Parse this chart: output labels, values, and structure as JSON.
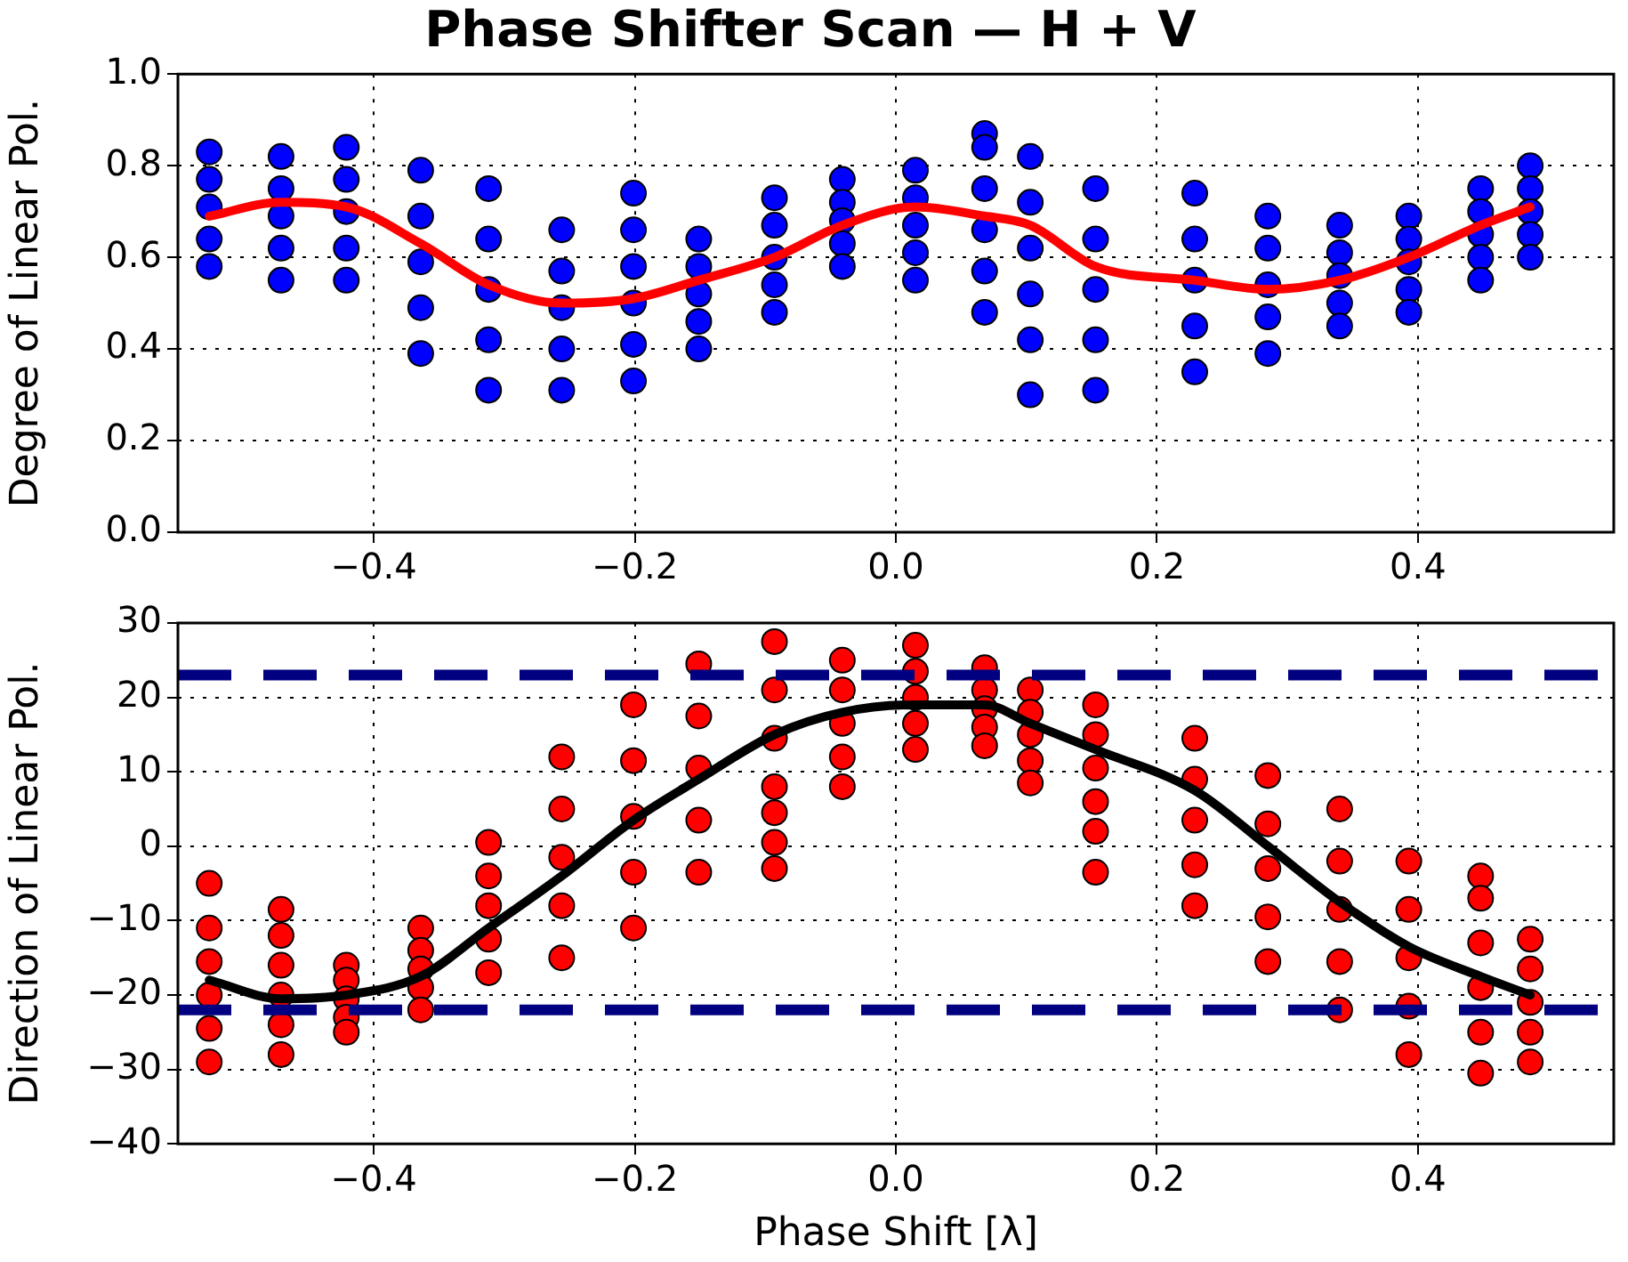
{
  "chart_data": [
    {
      "type": "scatter",
      "title": "Phase Shifter Scan — H + V",
      "ylabel": "Degree of Linear Pol.",
      "xlim": [
        -0.55,
        0.55
      ],
      "xticks": [
        {
          "value": -0.4,
          "label": "−0.4"
        },
        {
          "value": -0.2,
          "label": "−0.2"
        },
        {
          "value": 0,
          "label": "0.0"
        },
        {
          "value": 0.2,
          "label": "0.2"
        },
        {
          "value": 0.4,
          "label": "0.4"
        }
      ],
      "ylim": [
        0,
        1
      ],
      "yticks": [
        {
          "value": 0,
          "label": "0.0"
        },
        {
          "value": 0.2,
          "label": "0.2"
        },
        {
          "value": 0.4,
          "label": "0.4"
        },
        {
          "value": 0.6,
          "label": "0.6"
        },
        {
          "value": 0.8,
          "label": "0.8"
        },
        {
          "value": 1,
          "label": "1.0"
        }
      ],
      "grid": true,
      "legend": false,
      "series": [
        {
          "color": "#0000ff",
          "marker": "circle",
          "x": [
            -0.526,
            -0.526,
            -0.526,
            -0.526,
            -0.526,
            -0.471,
            -0.471,
            -0.471,
            -0.471,
            -0.471,
            -0.421,
            -0.421,
            -0.421,
            -0.421,
            -0.421,
            -0.364,
            -0.364,
            -0.364,
            -0.364,
            -0.364,
            -0.312,
            -0.312,
            -0.312,
            -0.312,
            -0.312,
            -0.256,
            -0.256,
            -0.256,
            -0.256,
            -0.256,
            -0.201,
            -0.201,
            -0.201,
            -0.201,
            -0.201,
            -0.201,
            -0.151,
            -0.151,
            -0.151,
            -0.151,
            -0.151,
            -0.093,
            -0.093,
            -0.093,
            -0.093,
            -0.093,
            -0.041,
            -0.041,
            -0.041,
            -0.041,
            -0.041,
            0.015,
            0.015,
            0.015,
            0.015,
            0.015,
            0.068,
            0.068,
            0.068,
            0.068,
            0.068,
            0.068,
            0.103,
            0.103,
            0.103,
            0.103,
            0.103,
            0.103,
            0.153,
            0.153,
            0.153,
            0.153,
            0.153,
            0.229,
            0.229,
            0.229,
            0.229,
            0.229,
            0.285,
            0.285,
            0.285,
            0.285,
            0.285,
            0.34,
            0.34,
            0.34,
            0.34,
            0.34,
            0.393,
            0.393,
            0.393,
            0.393,
            0.393,
            0.448,
            0.448,
            0.448,
            0.448,
            0.448,
            0.486,
            0.486,
            0.486,
            0.486,
            0.486
          ],
          "values": [
            0.83,
            0.77,
            0.71,
            0.64,
            0.58,
            0.82,
            0.75,
            0.69,
            0.62,
            0.55,
            0.84,
            0.77,
            0.7,
            0.62,
            0.55,
            0.79,
            0.69,
            0.59,
            0.49,
            0.39,
            0.75,
            0.64,
            0.53,
            0.42,
            0.31,
            0.66,
            0.57,
            0.49,
            0.4,
            0.31,
            0.74,
            0.66,
            0.58,
            0.5,
            0.41,
            0.33,
            0.64,
            0.58,
            0.52,
            0.46,
            0.4,
            0.73,
            0.67,
            0.6,
            0.54,
            0.48,
            0.77,
            0.72,
            0.68,
            0.63,
            0.58,
            0.79,
            0.73,
            0.67,
            0.61,
            0.55,
            0.87,
            0.84,
            0.75,
            0.66,
            0.57,
            0.48,
            0.82,
            0.72,
            0.62,
            0.52,
            0.42,
            0.3,
            0.75,
            0.64,
            0.53,
            0.42,
            0.31,
            0.74,
            0.64,
            0.55,
            0.45,
            0.35,
            0.69,
            0.62,
            0.54,
            0.47,
            0.39,
            0.67,
            0.61,
            0.56,
            0.5,
            0.45,
            0.69,
            0.64,
            0.59,
            0.53,
            0.48,
            0.75,
            0.7,
            0.65,
            0.6,
            0.55,
            0.8,
            0.75,
            0.7,
            0.65,
            0.6
          ]
        },
        {
          "type": "line",
          "color": "#ff0000",
          "marker": "none",
          "line_style": "solid",
          "x": [
            -0.526,
            -0.471,
            -0.421,
            -0.364,
            -0.312,
            -0.256,
            -0.201,
            -0.151,
            -0.093,
            -0.041,
            0.015,
            0.068,
            0.103,
            0.153,
            0.229,
            0.285,
            0.34,
            0.393,
            0.448,
            0.486
          ],
          "values": [
            0.69,
            0.72,
            0.71,
            0.63,
            0.54,
            0.5,
            0.51,
            0.55,
            0.6,
            0.67,
            0.71,
            0.69,
            0.67,
            0.58,
            0.55,
            0.53,
            0.55,
            0.6,
            0.67,
            0.71
          ]
        }
      ]
    },
    {
      "type": "scatter",
      "xlabel": "Phase Shift [λ]",
      "ylabel": "Direction of Linear Pol.",
      "xlim": [
        -0.55,
        0.55
      ],
      "xticks": [
        {
          "value": -0.4,
          "label": "−0.4"
        },
        {
          "value": -0.2,
          "label": "−0.2"
        },
        {
          "value": 0,
          "label": "0.0"
        },
        {
          "value": 0.2,
          "label": "0.2"
        },
        {
          "value": 0.4,
          "label": "0.4"
        }
      ],
      "ylim": [
        -40,
        30
      ],
      "yticks": [
        {
          "value": -40,
          "label": "−40"
        },
        {
          "value": -30,
          "label": "−30"
        },
        {
          "value": -20,
          "label": "−20"
        },
        {
          "value": -10,
          "label": "−10"
        },
        0,
        10,
        20,
        30
      ],
      "grid": true,
      "legend": false,
      "ref_lines": [
        {
          "axis": "y",
          "value": 23,
          "color": "#000080",
          "line_style": "dashed"
        },
        {
          "axis": "y",
          "value": -22,
          "color": "#000080",
          "line_style": "dashed"
        }
      ],
      "series": [
        {
          "color": "#ff0000",
          "marker": "circle",
          "x": [
            -0.526,
            -0.526,
            -0.526,
            -0.526,
            -0.526,
            -0.526,
            -0.471,
            -0.471,
            -0.471,
            -0.471,
            -0.471,
            -0.471,
            -0.421,
            -0.421,
            -0.421,
            -0.421,
            -0.421,
            -0.364,
            -0.364,
            -0.364,
            -0.364,
            -0.364,
            -0.312,
            -0.312,
            -0.312,
            -0.312,
            -0.312,
            -0.256,
            -0.256,
            -0.256,
            -0.256,
            -0.256,
            -0.201,
            -0.201,
            -0.201,
            -0.201,
            -0.201,
            -0.151,
            -0.151,
            -0.151,
            -0.151,
            -0.151,
            -0.093,
            -0.093,
            -0.093,
            -0.093,
            -0.093,
            -0.093,
            -0.093,
            -0.041,
            -0.041,
            -0.041,
            -0.041,
            -0.041,
            0.015,
            0.015,
            0.015,
            0.015,
            0.015,
            0.068,
            0.068,
            0.068,
            0.068,
            0.068,
            0.103,
            0.103,
            0.103,
            0.103,
            0.103,
            0.153,
            0.153,
            0.153,
            0.153,
            0.153,
            0.153,
            0.229,
            0.229,
            0.229,
            0.229,
            0.229,
            0.285,
            0.285,
            0.285,
            0.285,
            0.285,
            0.34,
            0.34,
            0.34,
            0.34,
            0.34,
            0.393,
            0.393,
            0.393,
            0.393,
            0.393,
            0.448,
            0.448,
            0.448,
            0.448,
            0.448,
            0.448,
            0.486,
            0.486,
            0.486,
            0.486,
            0.486
          ],
          "values": [
            -5,
            -11,
            -15.5,
            -20,
            -24.5,
            -29,
            -8.5,
            -12,
            -16,
            -20,
            -24,
            -28,
            -16,
            -18,
            -20.5,
            -23,
            -25,
            -11,
            -14,
            -16.5,
            -19,
            -22,
            0.5,
            -4,
            -8,
            -12.5,
            -17,
            12,
            5,
            -1.5,
            -8,
            -15,
            19,
            11.5,
            4,
            -3.5,
            -11,
            24.5,
            17.5,
            10.5,
            3.5,
            -3.5,
            27.5,
            21,
            14.5,
            8,
            4.5,
            0.5,
            -3,
            25,
            21,
            16.5,
            12,
            8,
            27,
            23.5,
            20,
            16.5,
            13,
            24,
            21,
            18.5,
            16,
            13.5,
            21,
            18,
            15,
            11.5,
            8.5,
            19,
            15,
            10.5,
            6,
            2,
            -3.5,
            14.5,
            9,
            3.5,
            -2.5,
            -8,
            9.5,
            3,
            -3,
            -9.5,
            -15.5,
            5,
            -2,
            -8.5,
            -15.5,
            -22,
            -2,
            -8.5,
            -15,
            -21.5,
            -28,
            -4,
            -7,
            -13,
            -19,
            -25,
            -30.5,
            -12.5,
            -16.5,
            -21,
            -25,
            -29
          ]
        },
        {
          "type": "line",
          "color": "#000000",
          "marker": "none",
          "line_style": "solid",
          "x": [
            -0.526,
            -0.471,
            -0.421,
            -0.364,
            -0.312,
            -0.256,
            -0.201,
            -0.151,
            -0.093,
            -0.041,
            0.015,
            0.068,
            0.103,
            0.153,
            0.229,
            0.285,
            0.34,
            0.393,
            0.448,
            0.486
          ],
          "values": [
            -18,
            -20.5,
            -20,
            -17.5,
            -11,
            -4,
            3.5,
            9,
            15,
            18,
            19,
            19,
            16.5,
            13,
            7.5,
            0,
            -7.5,
            -13.5,
            -17.5,
            -20
          ]
        }
      ]
    }
  ]
}
